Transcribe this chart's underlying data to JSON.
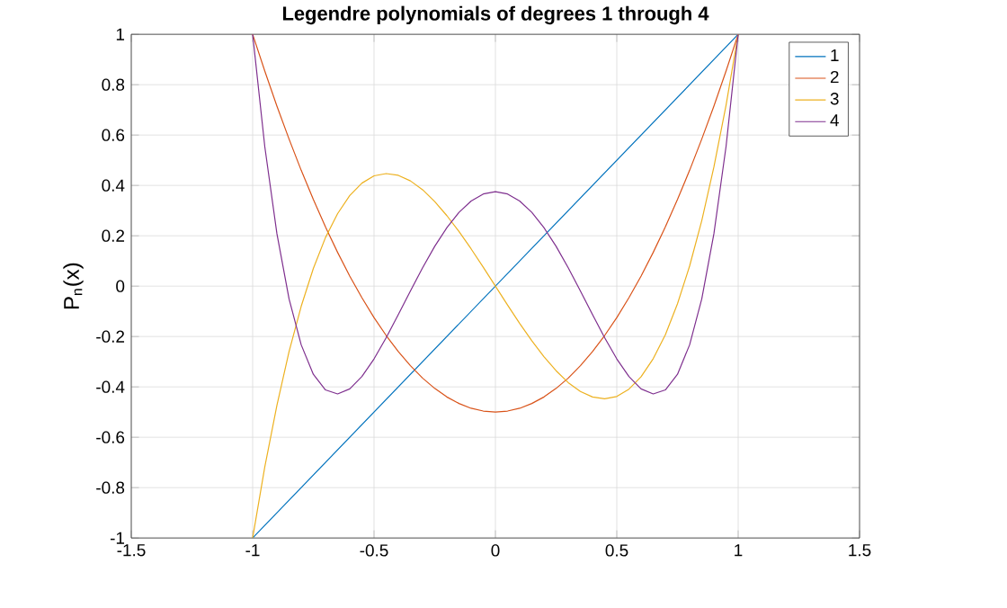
{
  "chart_data": {
    "type": "line",
    "title": "Legendre polynomials of degrees 1 through 4",
    "ylabel": "P$_{n}$(x)",
    "x": [
      -1,
      -0.95,
      -0.9,
      -0.85,
      -0.8,
      -0.75,
      -0.7,
      -0.65,
      -0.6,
      -0.55,
      -0.5,
      -0.45,
      -0.4,
      -0.35,
      -0.3,
      -0.25,
      -0.2,
      -0.15,
      -0.1,
      -0.05,
      0,
      0.05,
      0.1,
      0.15,
      0.2,
      0.25,
      0.3,
      0.35,
      0.4,
      0.45,
      0.5,
      0.55,
      0.6,
      0.65,
      0.7,
      0.75,
      0.8,
      0.85,
      0.9,
      0.95,
      1
    ],
    "series": [
      {
        "name": "1",
        "color": "#0072bd",
        "values": [
          -1,
          -0.95,
          -0.9,
          -0.85,
          -0.8,
          -0.75,
          -0.7,
          -0.65,
          -0.6,
          -0.55,
          -0.5,
          -0.45,
          -0.4,
          -0.35,
          -0.3,
          -0.25,
          -0.2,
          -0.15,
          -0.1,
          -0.05,
          0,
          0.05,
          0.1,
          0.15,
          0.2,
          0.25,
          0.3,
          0.35,
          0.4,
          0.45,
          0.5,
          0.55,
          0.6,
          0.65,
          0.7,
          0.75,
          0.8,
          0.85,
          0.9,
          0.95,
          1
        ]
      },
      {
        "name": "2",
        "color": "#d95319",
        "values": [
          1,
          0.854,
          0.715,
          0.584,
          0.46,
          0.344,
          0.235,
          0.134,
          0.04,
          -0.046,
          -0.125,
          -0.196,
          -0.26,
          -0.316,
          -0.365,
          -0.406,
          -0.44,
          -0.466,
          -0.485,
          -0.496,
          -0.5,
          -0.496,
          -0.485,
          -0.466,
          -0.44,
          -0.406,
          -0.365,
          -0.316,
          -0.26,
          -0.196,
          -0.125,
          -0.046,
          0.04,
          0.134,
          0.235,
          0.344,
          0.46,
          0.584,
          0.715,
          0.854,
          1
        ]
      },
      {
        "name": "3",
        "color": "#edb120",
        "values": [
          -1,
          -0.718,
          -0.473,
          -0.26,
          -0.08,
          0.07,
          0.193,
          0.288,
          0.36,
          0.409,
          0.438,
          0.447,
          0.44,
          0.418,
          0.383,
          0.336,
          0.28,
          0.217,
          0.148,
          0.075,
          0,
          -0.075,
          -0.148,
          -0.217,
          -0.28,
          -0.336,
          -0.383,
          -0.418,
          -0.44,
          -0.447,
          -0.438,
          -0.409,
          -0.36,
          -0.288,
          -0.193,
          -0.07,
          0.08,
          0.26,
          0.473,
          0.718,
          1
        ]
      },
      {
        "name": "4",
        "color": "#7e2f8e",
        "values": [
          1,
          0.554,
          0.208,
          -0.051,
          -0.233,
          -0.35,
          -0.412,
          -0.428,
          -0.408,
          -0.359,
          -0.289,
          -0.205,
          -0.113,
          -0.019,
          0.073,
          0.158,
          0.232,
          0.293,
          0.338,
          0.366,
          0.375,
          0.366,
          0.338,
          0.293,
          0.232,
          0.158,
          0.073,
          -0.019,
          -0.113,
          -0.205,
          -0.289,
          -0.359,
          -0.408,
          -0.428,
          -0.412,
          -0.35,
          -0.233,
          -0.051,
          0.208,
          0.554,
          1
        ]
      }
    ],
    "xlim": [
      -1.5,
      1.5
    ],
    "xticks": [
      -1.5,
      -1,
      -0.5,
      0,
      0.5,
      1,
      1.5
    ],
    "ylim": [
      -1,
      1
    ],
    "yticks": [
      -1,
      -0.8,
      -0.6,
      -0.4,
      -0.2,
      0,
      0.2,
      0.4,
      0.6,
      0.8,
      1
    ],
    "grid": true,
    "legend": "top right",
    "marker": "none",
    "line_style": "solid"
  }
}
